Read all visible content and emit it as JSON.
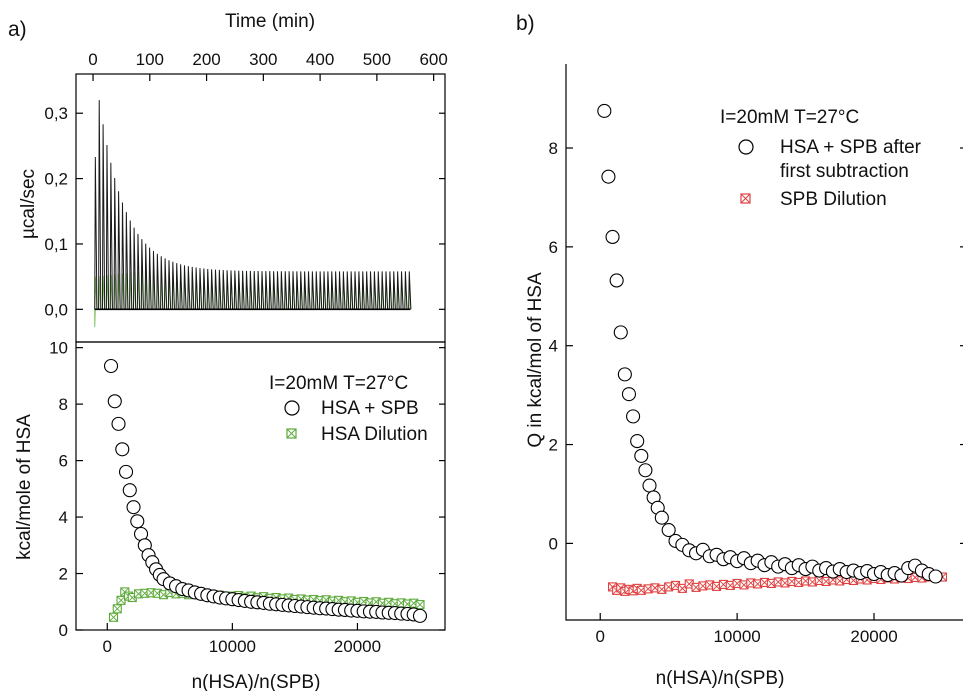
{
  "panel_labels": {
    "a": "a)",
    "b": "b)"
  },
  "chart_data": [
    {
      "id": "a-top",
      "type": "line",
      "title": "",
      "xlabel": "Time (min)",
      "ylabel": "µcal/sec",
      "xlim": [
        -30,
        620
      ],
      "ylim": [
        -0.05,
        0.36
      ],
      "xticks": [
        0,
        100,
        200,
        300,
        400,
        500,
        600
      ],
      "xtick_labels": [
        "0",
        "100",
        "200",
        "300",
        "400",
        "500",
        "600"
      ],
      "yticks": [
        0.0,
        0.1,
        0.2,
        0.3
      ],
      "ytick_labels": [
        "0,0",
        "0,1",
        "0,2",
        "0,3"
      ],
      "x_axis_position": "top",
      "legend": "none",
      "series": [
        {
          "color": "#1a1a1a",
          "injections": 82,
          "t_start": 3,
          "t_end": 556,
          "peak_first": 0.233,
          "peak_max": 0.32,
          "peak_plateau": 0.058,
          "decay_min": 45
        },
        {
          "color": "#7cc45a",
          "injections": 82,
          "t_start": 3,
          "t_end": 556,
          "peak_start": 0.05,
          "peak_plateau": 0.06,
          "peak_end": 0.045,
          "initial_dip": -0.027
        }
      ]
    },
    {
      "id": "a-bottom",
      "type": "scatter",
      "title": "",
      "xlabel": "n(HSA)/n(SPB)",
      "ylabel": "kcal/mole of HSA",
      "xlim": [
        -2500,
        27000
      ],
      "ylim": [
        0,
        10.2
      ],
      "xticks": [
        0,
        10000,
        20000
      ],
      "xtick_labels": [
        "0",
        "10000",
        "20000"
      ],
      "yticks": [
        0,
        2,
        4,
        6,
        8,
        10
      ],
      "ytick_labels": [
        "0",
        "2",
        "4",
        "6",
        "8",
        "10"
      ],
      "annotation": "I=20mM T=27°C",
      "legend": "top-right",
      "series": [
        {
          "name": "HSA + SPB",
          "marker": "open-circle",
          "color": "#000000",
          "x": [
            300,
            600,
            900,
            1200,
            1500,
            1800,
            2100,
            2400,
            2700,
            3000,
            3300,
            3600,
            3900,
            4200,
            4500,
            5000,
            5500,
            6000,
            6500,
            7000,
            7500,
            8000,
            8500,
            9000,
            9500,
            10000,
            10500,
            11000,
            11500,
            12000,
            12500,
            13000,
            13500,
            14000,
            14500,
            15000,
            15500,
            16000,
            16500,
            17000,
            17500,
            18000,
            18500,
            19000,
            19500,
            20000,
            20500,
            21000,
            21500,
            22000,
            22500,
            23000,
            23500,
            24000,
            24500,
            25000
          ],
          "y": [
            9.35,
            8.1,
            7.3,
            6.4,
            5.6,
            4.95,
            4.35,
            3.85,
            3.4,
            3.0,
            2.65,
            2.4,
            2.15,
            1.95,
            1.8,
            1.65,
            1.55,
            1.45,
            1.4,
            1.33,
            1.28,
            1.23,
            1.19,
            1.15,
            1.12,
            1.09,
            1.06,
            1.03,
            1.0,
            0.98,
            0.96,
            0.93,
            0.91,
            0.89,
            0.87,
            0.85,
            0.83,
            0.81,
            0.79,
            0.77,
            0.76,
            0.74,
            0.72,
            0.71,
            0.69,
            0.68,
            0.66,
            0.65,
            0.64,
            0.62,
            0.61,
            0.6,
            0.58,
            0.57,
            0.55,
            0.5
          ]
        },
        {
          "name": "HSA Dilution",
          "marker": "crossed-square",
          "color": "#5cab3a",
          "x": [
            500,
            800,
            1100,
            1400,
            1700,
            2000,
            2500,
            3000,
            3500,
            4000,
            4500,
            5000,
            5500,
            6000,
            6500,
            7000,
            7500,
            8000,
            8500,
            9000,
            9500,
            10000,
            10500,
            11000,
            11500,
            12000,
            12500,
            13000,
            13500,
            14000,
            14500,
            15000,
            15500,
            16000,
            16500,
            17000,
            17500,
            18000,
            18500,
            19000,
            19500,
            20000,
            20500,
            21000,
            21500,
            22000,
            22500,
            23000,
            23500,
            24000,
            24500,
            25000
          ],
          "y": [
            0.45,
            0.75,
            1.05,
            1.35,
            1.2,
            1.15,
            1.28,
            1.3,
            1.32,
            1.3,
            1.25,
            1.33,
            1.28,
            1.3,
            1.25,
            1.27,
            1.22,
            1.25,
            1.2,
            1.23,
            1.19,
            1.2,
            1.22,
            1.16,
            1.2,
            1.14,
            1.18,
            1.12,
            1.15,
            1.1,
            1.13,
            1.08,
            1.1,
            1.06,
            1.08,
            1.04,
            1.07,
            1.02,
            1.05,
            1.0,
            1.03,
            0.98,
            1.01,
            0.96,
            1.0,
            0.95,
            0.98,
            0.93,
            0.96,
            0.92,
            0.95,
            0.9
          ]
        }
      ]
    },
    {
      "id": "b",
      "type": "scatter",
      "title": "",
      "xlabel": "n(HSA)/n(SPB)",
      "ylabel": "Q in kcal/mol of HSA",
      "xlim": [
        -2500,
        26500
      ],
      "ylim": [
        -1.55,
        9.7
      ],
      "xticks": [
        0,
        10000,
        20000
      ],
      "xtick_labels": [
        "0",
        "10000",
        "20000"
      ],
      "yticks": [
        0,
        2,
        4,
        6,
        8
      ],
      "ytick_labels": [
        "0",
        "2",
        "4",
        "6",
        "8"
      ],
      "annotation": "I=20mM T=27°C",
      "legend": "top-right",
      "series": [
        {
          "name": "HSA + SPB after first subtraction",
          "marker": "open-circle",
          "color": "#000000",
          "x": [
            300,
            600,
            900,
            1200,
            1500,
            1800,
            2100,
            2400,
            2700,
            3000,
            3300,
            3600,
            3900,
            4200,
            4500,
            5000,
            5500,
            6000,
            6500,
            7000,
            7500,
            8000,
            8500,
            9000,
            9500,
            10000,
            10500,
            11000,
            11500,
            12000,
            12500,
            13000,
            13500,
            14000,
            14500,
            15000,
            15500,
            16000,
            16500,
            17000,
            17500,
            18000,
            18500,
            19000,
            19500,
            20000,
            20500,
            21000,
            21500,
            22000,
            22500,
            23000,
            23500,
            24000,
            24500
          ],
          "y": [
            8.75,
            7.42,
            6.2,
            5.32,
            4.27,
            3.42,
            3.02,
            2.57,
            2.07,
            1.77,
            1.48,
            1.17,
            0.93,
            0.72,
            0.52,
            0.27,
            0.05,
            -0.03,
            -0.14,
            -0.2,
            -0.13,
            -0.26,
            -0.23,
            -0.32,
            -0.28,
            -0.36,
            -0.3,
            -0.4,
            -0.35,
            -0.44,
            -0.38,
            -0.47,
            -0.42,
            -0.5,
            -0.44,
            -0.52,
            -0.47,
            -0.55,
            -0.5,
            -0.57,
            -0.52,
            -0.58,
            -0.55,
            -0.6,
            -0.56,
            -0.62,
            -0.58,
            -0.64,
            -0.6,
            -0.65,
            -0.5,
            -0.45,
            -0.55,
            -0.62,
            -0.67
          ]
        },
        {
          "name": "SPB Dilution",
          "marker": "crossed-square",
          "color": "#e04040",
          "x": [
            900,
            1200,
            1500,
            1800,
            2100,
            2400,
            2700,
            3000,
            3500,
            4000,
            4500,
            5000,
            5500,
            6000,
            6500,
            7000,
            7500,
            8000,
            8500,
            9000,
            9500,
            10000,
            10500,
            11000,
            11500,
            12000,
            12500,
            13000,
            13500,
            14000,
            14500,
            15000,
            15500,
            16000,
            16500,
            17000,
            17500,
            18000,
            18500,
            19000,
            19500,
            20000,
            20500,
            21000,
            21500,
            22000,
            22500,
            23000,
            23500,
            24000,
            24500,
            25000
          ],
          "y": [
            -0.88,
            -0.95,
            -0.9,
            -0.97,
            -0.93,
            -0.96,
            -0.91,
            -0.95,
            -0.92,
            -0.9,
            -0.93,
            -0.88,
            -0.85,
            -0.91,
            -0.82,
            -0.89,
            -0.86,
            -0.84,
            -0.87,
            -0.83,
            -0.85,
            -0.81,
            -0.84,
            -0.8,
            -0.82,
            -0.79,
            -0.81,
            -0.78,
            -0.8,
            -0.77,
            -0.79,
            -0.76,
            -0.78,
            -0.75,
            -0.77,
            -0.74,
            -0.76,
            -0.73,
            -0.75,
            -0.72,
            -0.74,
            -0.71,
            -0.73,
            -0.7,
            -0.72,
            -0.7,
            -0.71,
            -0.69,
            -0.7,
            -0.68,
            -0.69,
            -0.68
          ]
        }
      ]
    }
  ]
}
